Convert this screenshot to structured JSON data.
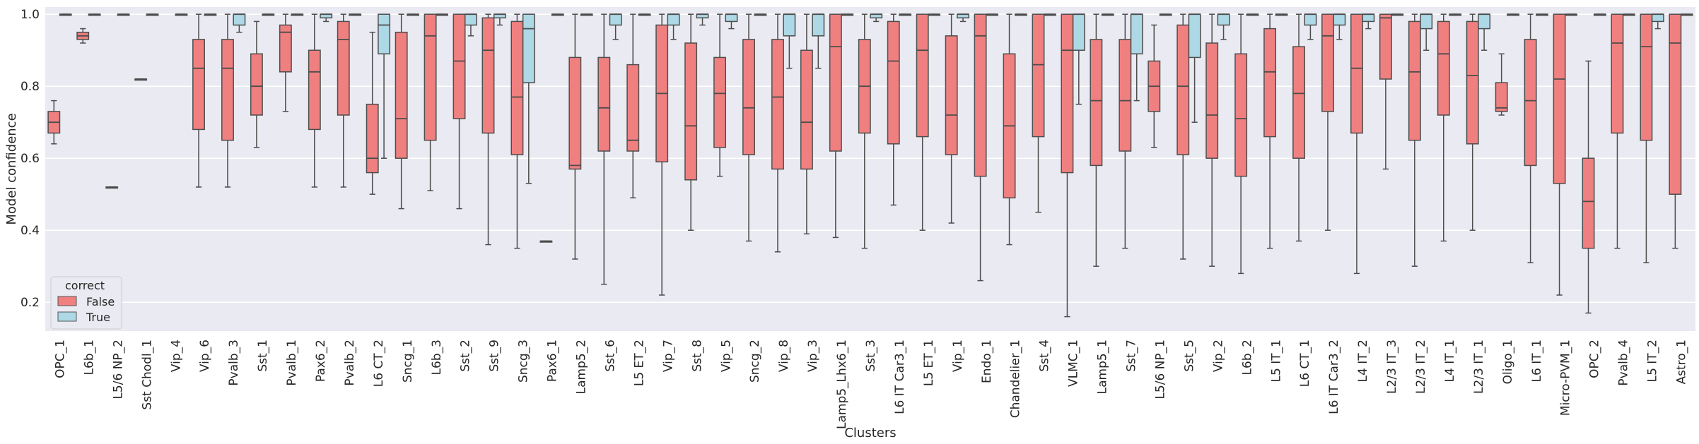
{
  "chart_data": {
    "type": "boxplot",
    "xlabel": "Clusters",
    "ylabel": "Model confidence",
    "ylim": [
      0.12,
      1.02
    ],
    "yticks": [
      0.2,
      0.4,
      0.6,
      0.8,
      1.0
    ],
    "ytick_labels": [
      "0.2",
      "0.4",
      "0.6",
      "0.8",
      "1.0"
    ],
    "grid": true,
    "legend": {
      "title": "correct",
      "placement": "lower-left",
      "entries": [
        {
          "label": "False",
          "color": "#f08080"
        },
        {
          "label": "True",
          "color": "#add8e6"
        }
      ]
    },
    "categories": [
      "OPC_1",
      "L6b_1",
      "L5/6 NP_2",
      "Sst Chodl_1",
      "Vip_4",
      "Vip_6",
      "Pvalb_3",
      "Sst_1",
      "Pvalb_1",
      "Pax6_2",
      "Pvalb_2",
      "L6 CT_2",
      "Sncg_1",
      "L6b_3",
      "Sst_2",
      "Sst_9",
      "Sncg_3",
      "Pax6_1",
      "Lamp5_2",
      "Sst_6",
      "L5 ET_2",
      "Vip_7",
      "Sst_8",
      "Vip_5",
      "Sncg_2",
      "Vip_8",
      "Vip_3",
      "Lamp5_Lhx6_1",
      "Sst_3",
      "L6 IT Car3_1",
      "L5 ET_1",
      "Vip_1",
      "Endo_1",
      "Chandelier_1",
      "Sst_4",
      "VLMC_1",
      "Lamp5_1",
      "Sst_7",
      "L5/6 NP_1",
      "Sst_5",
      "Vip_2",
      "L6b_2",
      "L5 IT_1",
      "L6 CT_1",
      "L6 IT Car3_2",
      "L4 IT_2",
      "L2/3 IT_3",
      "L2/3 IT_2",
      "L4 IT_1",
      "L2/3 IT_1",
      "Oligo_1",
      "L6 IT_1",
      "Micro-PVM_1",
      "OPC_2",
      "Pvalb_4",
      "L5 IT_2",
      "Astro_1"
    ],
    "series": [
      {
        "name": "False",
        "color": "#f08080",
        "boxes": [
          {
            "q1": 0.67,
            "med": 0.7,
            "q3": 0.73,
            "lo": 0.64,
            "hi": 0.76
          },
          {
            "q1": 0.93,
            "med": 0.94,
            "q3": 0.95,
            "lo": 0.92,
            "hi": 0.96
          },
          {
            "q1": 0.52,
            "med": 0.52,
            "q3": 0.52,
            "lo": 0.52,
            "hi": 0.52
          },
          {
            "q1": 0.82,
            "med": 0.82,
            "q3": 0.82,
            "lo": 0.82,
            "hi": 0.82
          },
          null,
          {
            "q1": 0.68,
            "med": 0.85,
            "q3": 0.93,
            "lo": 0.52,
            "hi": 1.0
          },
          {
            "q1": 0.65,
            "med": 0.85,
            "q3": 0.93,
            "lo": 0.52,
            "hi": 1.0
          },
          {
            "q1": 0.72,
            "med": 0.8,
            "q3": 0.89,
            "lo": 0.63,
            "hi": 0.98
          },
          {
            "q1": 0.84,
            "med": 0.95,
            "q3": 0.97,
            "lo": 0.73,
            "hi": 1.0
          },
          {
            "q1": 0.68,
            "med": 0.84,
            "q3": 0.9,
            "lo": 0.52,
            "hi": 1.0
          },
          {
            "q1": 0.72,
            "med": 0.93,
            "q3": 0.98,
            "lo": 0.52,
            "hi": 1.0
          },
          {
            "q1": 0.56,
            "med": 0.6,
            "q3": 0.75,
            "lo": 0.5,
            "hi": 0.95
          },
          {
            "q1": 0.6,
            "med": 0.71,
            "q3": 0.95,
            "lo": 0.46,
            "hi": 1.0
          },
          {
            "q1": 0.65,
            "med": 0.94,
            "q3": 1.0,
            "lo": 0.51,
            "hi": 1.0
          },
          {
            "q1": 0.71,
            "med": 0.87,
            "q3": 1.0,
            "lo": 0.46,
            "hi": 1.0
          },
          {
            "q1": 0.67,
            "med": 0.9,
            "q3": 0.99,
            "lo": 0.36,
            "hi": 1.0
          },
          {
            "q1": 0.61,
            "med": 0.77,
            "q3": 0.98,
            "lo": 0.35,
            "hi": 1.0
          },
          {
            "q1": 0.37,
            "med": 0.37,
            "q3": 0.37,
            "lo": 0.37,
            "hi": 0.37
          },
          {
            "q1": 0.57,
            "med": 0.58,
            "q3": 0.88,
            "lo": 0.32,
            "hi": 1.0
          },
          {
            "q1": 0.62,
            "med": 0.74,
            "q3": 0.88,
            "lo": 0.25,
            "hi": 1.0
          },
          {
            "q1": 0.62,
            "med": 0.65,
            "q3": 0.86,
            "lo": 0.49,
            "hi": 1.0
          },
          {
            "q1": 0.59,
            "med": 0.78,
            "q3": 0.97,
            "lo": 0.22,
            "hi": 1.0
          },
          {
            "q1": 0.54,
            "med": 0.69,
            "q3": 0.92,
            "lo": 0.4,
            "hi": 1.0
          },
          {
            "q1": 0.63,
            "med": 0.78,
            "q3": 0.88,
            "lo": 0.55,
            "hi": 1.0
          },
          {
            "q1": 0.61,
            "med": 0.74,
            "q3": 0.93,
            "lo": 0.37,
            "hi": 1.0
          },
          {
            "q1": 0.57,
            "med": 0.77,
            "q3": 0.93,
            "lo": 0.34,
            "hi": 1.0
          },
          {
            "q1": 0.57,
            "med": 0.7,
            "q3": 0.9,
            "lo": 0.39,
            "hi": 1.0
          },
          {
            "q1": 0.62,
            "med": 0.91,
            "q3": 1.0,
            "lo": 0.38,
            "hi": 1.0
          },
          {
            "q1": 0.67,
            "med": 0.8,
            "q3": 0.93,
            "lo": 0.35,
            "hi": 1.0
          },
          {
            "q1": 0.64,
            "med": 0.87,
            "q3": 0.98,
            "lo": 0.47,
            "hi": 1.0
          },
          {
            "q1": 0.66,
            "med": 0.9,
            "q3": 1.0,
            "lo": 0.4,
            "hi": 1.0
          },
          {
            "q1": 0.61,
            "med": 0.72,
            "q3": 0.94,
            "lo": 0.42,
            "hi": 1.0
          },
          {
            "q1": 0.55,
            "med": 0.94,
            "q3": 1.0,
            "lo": 0.26,
            "hi": 1.0
          },
          {
            "q1": 0.49,
            "med": 0.69,
            "q3": 0.89,
            "lo": 0.36,
            "hi": 1.0
          },
          {
            "q1": 0.66,
            "med": 0.86,
            "q3": 1.0,
            "lo": 0.45,
            "hi": 1.0
          },
          {
            "q1": 0.56,
            "med": 0.9,
            "q3": 1.0,
            "lo": 0.16,
            "hi": 1.0
          },
          {
            "q1": 0.58,
            "med": 0.76,
            "q3": 0.93,
            "lo": 0.3,
            "hi": 1.0
          },
          {
            "q1": 0.62,
            "med": 0.76,
            "q3": 0.93,
            "lo": 0.35,
            "hi": 1.0
          },
          {
            "q1": 0.73,
            "med": 0.8,
            "q3": 0.87,
            "lo": 0.63,
            "hi": 0.97
          },
          {
            "q1": 0.61,
            "med": 0.8,
            "q3": 0.97,
            "lo": 0.32,
            "hi": 1.0
          },
          {
            "q1": 0.6,
            "med": 0.72,
            "q3": 0.92,
            "lo": 0.3,
            "hi": 1.0
          },
          {
            "q1": 0.55,
            "med": 0.71,
            "q3": 0.89,
            "lo": 0.28,
            "hi": 1.0
          },
          {
            "q1": 0.66,
            "med": 0.84,
            "q3": 0.96,
            "lo": 0.35,
            "hi": 1.0
          },
          {
            "q1": 0.6,
            "med": 0.78,
            "q3": 0.91,
            "lo": 0.37,
            "hi": 1.0
          },
          {
            "q1": 0.73,
            "med": 0.94,
            "q3": 1.0,
            "lo": 0.4,
            "hi": 1.0
          },
          {
            "q1": 0.67,
            "med": 0.85,
            "q3": 1.0,
            "lo": 0.28,
            "hi": 1.0
          },
          {
            "q1": 0.82,
            "med": 0.99,
            "q3": 1.0,
            "lo": 0.57,
            "hi": 1.0
          },
          {
            "q1": 0.65,
            "med": 0.84,
            "q3": 0.98,
            "lo": 0.3,
            "hi": 1.0
          },
          {
            "q1": 0.72,
            "med": 0.89,
            "q3": 0.98,
            "lo": 0.37,
            "hi": 1.0
          },
          {
            "q1": 0.64,
            "med": 0.83,
            "q3": 0.98,
            "lo": 0.4,
            "hi": 1.0
          },
          {
            "q1": 0.73,
            "med": 0.74,
            "q3": 0.81,
            "lo": 0.72,
            "hi": 0.89
          },
          {
            "q1": 0.58,
            "med": 0.76,
            "q3": 0.93,
            "lo": 0.31,
            "hi": 1.0
          },
          {
            "q1": 0.53,
            "med": 0.82,
            "q3": 1.0,
            "lo": 0.22,
            "hi": 1.0
          },
          {
            "q1": 0.35,
            "med": 0.48,
            "q3": 0.6,
            "lo": 0.17,
            "hi": 0.87
          },
          {
            "q1": 0.67,
            "med": 0.92,
            "q3": 1.0,
            "lo": 0.35,
            "hi": 1.0
          },
          {
            "q1": 0.65,
            "med": 0.91,
            "q3": 1.0,
            "lo": 0.31,
            "hi": 1.0
          },
          {
            "q1": 0.5,
            "med": 0.92,
            "q3": 1.0,
            "lo": 0.35,
            "hi": 1.0
          }
        ]
      },
      {
        "name": "True",
        "color": "#add8e6",
        "boxes": [
          {
            "q1": 1.0,
            "med": 1.0,
            "q3": 1.0,
            "lo": 1.0,
            "hi": 1.0
          },
          {
            "q1": 1.0,
            "med": 1.0,
            "q3": 1.0,
            "lo": 1.0,
            "hi": 1.0
          },
          {
            "q1": 1.0,
            "med": 1.0,
            "q3": 1.0,
            "lo": 1.0,
            "hi": 1.0
          },
          {
            "q1": 1.0,
            "med": 1.0,
            "q3": 1.0,
            "lo": 1.0,
            "hi": 1.0
          },
          {
            "q1": 1.0,
            "med": 1.0,
            "q3": 1.0,
            "lo": 1.0,
            "hi": 1.0
          },
          {
            "q1": 1.0,
            "med": 1.0,
            "q3": 1.0,
            "lo": 1.0,
            "hi": 1.0
          },
          {
            "q1": 0.97,
            "med": 1.0,
            "q3": 1.0,
            "lo": 0.95,
            "hi": 1.0
          },
          {
            "q1": 1.0,
            "med": 1.0,
            "q3": 1.0,
            "lo": 1.0,
            "hi": 1.0
          },
          {
            "q1": 1.0,
            "med": 1.0,
            "q3": 1.0,
            "lo": 1.0,
            "hi": 1.0
          },
          {
            "q1": 0.99,
            "med": 1.0,
            "q3": 1.0,
            "lo": 0.98,
            "hi": 1.0
          },
          {
            "q1": 1.0,
            "med": 1.0,
            "q3": 1.0,
            "lo": 1.0,
            "hi": 1.0
          },
          {
            "q1": 0.89,
            "med": 0.97,
            "q3": 1.0,
            "lo": 0.6,
            "hi": 1.0
          },
          {
            "q1": 1.0,
            "med": 1.0,
            "q3": 1.0,
            "lo": 1.0,
            "hi": 1.0
          },
          {
            "q1": 1.0,
            "med": 1.0,
            "q3": 1.0,
            "lo": 1.0,
            "hi": 1.0
          },
          {
            "q1": 0.97,
            "med": 1.0,
            "q3": 1.0,
            "lo": 0.94,
            "hi": 1.0
          },
          {
            "q1": 0.99,
            "med": 1.0,
            "q3": 1.0,
            "lo": 0.97,
            "hi": 1.0
          },
          {
            "q1": 0.81,
            "med": 0.96,
            "q3": 1.0,
            "lo": 0.53,
            "hi": 1.0
          },
          {
            "q1": 1.0,
            "med": 1.0,
            "q3": 1.0,
            "lo": 1.0,
            "hi": 1.0
          },
          {
            "q1": 1.0,
            "med": 1.0,
            "q3": 1.0,
            "lo": 1.0,
            "hi": 1.0
          },
          {
            "q1": 0.97,
            "med": 1.0,
            "q3": 1.0,
            "lo": 0.93,
            "hi": 1.0
          },
          {
            "q1": 1.0,
            "med": 1.0,
            "q3": 1.0,
            "lo": 1.0,
            "hi": 1.0
          },
          {
            "q1": 0.97,
            "med": 1.0,
            "q3": 1.0,
            "lo": 0.93,
            "hi": 1.0
          },
          {
            "q1": 0.99,
            "med": 1.0,
            "q3": 1.0,
            "lo": 0.97,
            "hi": 1.0
          },
          {
            "q1": 0.98,
            "med": 1.0,
            "q3": 1.0,
            "lo": 0.96,
            "hi": 1.0
          },
          {
            "q1": 1.0,
            "med": 1.0,
            "q3": 1.0,
            "lo": 1.0,
            "hi": 1.0
          },
          {
            "q1": 0.94,
            "med": 1.0,
            "q3": 1.0,
            "lo": 0.85,
            "hi": 1.0
          },
          {
            "q1": 0.94,
            "med": 1.0,
            "q3": 1.0,
            "lo": 0.85,
            "hi": 1.0
          },
          {
            "q1": 1.0,
            "med": 1.0,
            "q3": 1.0,
            "lo": 1.0,
            "hi": 1.0
          },
          {
            "q1": 0.99,
            "med": 1.0,
            "q3": 1.0,
            "lo": 0.98,
            "hi": 1.0
          },
          {
            "q1": 1.0,
            "med": 1.0,
            "q3": 1.0,
            "lo": 1.0,
            "hi": 1.0
          },
          {
            "q1": 1.0,
            "med": 1.0,
            "q3": 1.0,
            "lo": 1.0,
            "hi": 1.0
          },
          {
            "q1": 0.99,
            "med": 1.0,
            "q3": 1.0,
            "lo": 0.98,
            "hi": 1.0
          },
          {
            "q1": 1.0,
            "med": 1.0,
            "q3": 1.0,
            "lo": 1.0,
            "hi": 1.0
          },
          {
            "q1": 1.0,
            "med": 1.0,
            "q3": 1.0,
            "lo": 1.0,
            "hi": 1.0
          },
          {
            "q1": 1.0,
            "med": 1.0,
            "q3": 1.0,
            "lo": 1.0,
            "hi": 1.0
          },
          {
            "q1": 0.9,
            "med": 1.0,
            "q3": 1.0,
            "lo": 0.75,
            "hi": 1.0
          },
          {
            "q1": 1.0,
            "med": 1.0,
            "q3": 1.0,
            "lo": 1.0,
            "hi": 1.0
          },
          {
            "q1": 0.89,
            "med": 1.0,
            "q3": 1.0,
            "lo": 0.76,
            "hi": 1.0
          },
          {
            "q1": 1.0,
            "med": 1.0,
            "q3": 1.0,
            "lo": 1.0,
            "hi": 1.0
          },
          {
            "q1": 0.88,
            "med": 1.0,
            "q3": 1.0,
            "lo": 0.7,
            "hi": 1.0
          },
          {
            "q1": 0.97,
            "med": 1.0,
            "q3": 1.0,
            "lo": 0.93,
            "hi": 1.0
          },
          {
            "q1": 1.0,
            "med": 1.0,
            "q3": 1.0,
            "lo": 1.0,
            "hi": 1.0
          },
          {
            "q1": 1.0,
            "med": 1.0,
            "q3": 1.0,
            "lo": 1.0,
            "hi": 1.0
          },
          {
            "q1": 0.97,
            "med": 1.0,
            "q3": 1.0,
            "lo": 0.93,
            "hi": 1.0
          },
          {
            "q1": 0.97,
            "med": 1.0,
            "q3": 1.0,
            "lo": 0.93,
            "hi": 1.0
          },
          {
            "q1": 0.98,
            "med": 1.0,
            "q3": 1.0,
            "lo": 0.96,
            "hi": 1.0
          },
          {
            "q1": 1.0,
            "med": 1.0,
            "q3": 1.0,
            "lo": 1.0,
            "hi": 1.0
          },
          {
            "q1": 0.96,
            "med": 1.0,
            "q3": 1.0,
            "lo": 0.9,
            "hi": 1.0
          },
          {
            "q1": 1.0,
            "med": 1.0,
            "q3": 1.0,
            "lo": 1.0,
            "hi": 1.0
          },
          {
            "q1": 0.96,
            "med": 1.0,
            "q3": 1.0,
            "lo": 0.9,
            "hi": 1.0
          },
          {
            "q1": 1.0,
            "med": 1.0,
            "q3": 1.0,
            "lo": 1.0,
            "hi": 1.0
          },
          {
            "q1": 1.0,
            "med": 1.0,
            "q3": 1.0,
            "lo": 1.0,
            "hi": 1.0
          },
          {
            "q1": 1.0,
            "med": 1.0,
            "q3": 1.0,
            "lo": 1.0,
            "hi": 1.0
          },
          {
            "q1": 1.0,
            "med": 1.0,
            "q3": 1.0,
            "lo": 1.0,
            "hi": 1.0
          },
          {
            "q1": 1.0,
            "med": 1.0,
            "q3": 1.0,
            "lo": 1.0,
            "hi": 1.0
          },
          {
            "q1": 0.98,
            "med": 1.0,
            "q3": 1.0,
            "lo": 0.96,
            "hi": 1.0
          },
          {
            "q1": 1.0,
            "med": 1.0,
            "q3": 1.0,
            "lo": 1.0,
            "hi": 1.0
          }
        ]
      }
    ]
  }
}
